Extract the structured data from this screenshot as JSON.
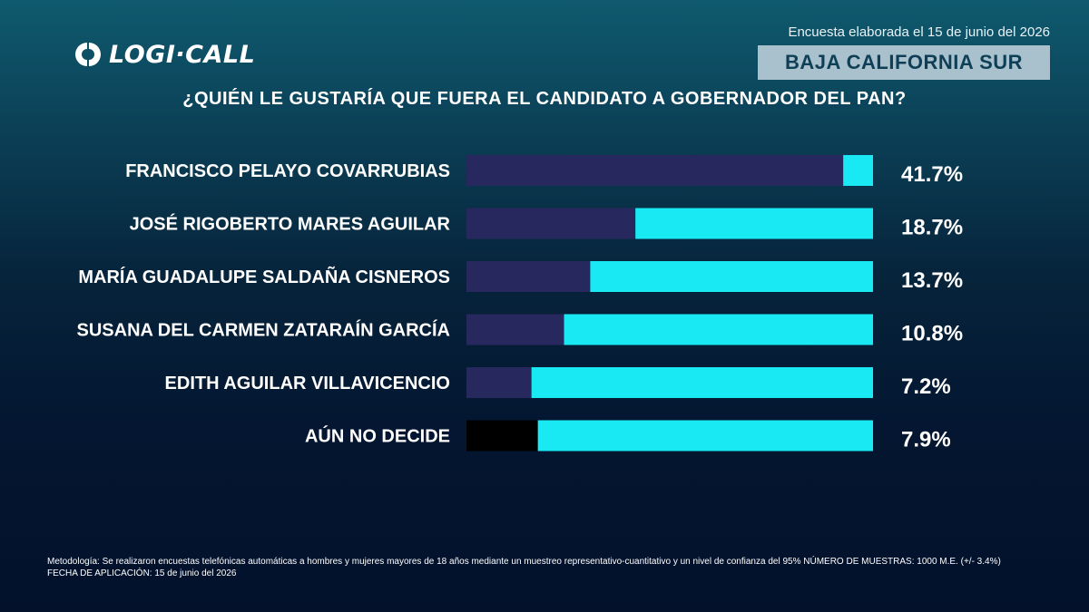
{
  "header": {
    "logo_text": "LOGI·CALL",
    "survey_date": "Encuesta elaborada el 15 de junio del 2026",
    "region": "BAJA CALIFORNIA SUR",
    "question": "¿QUIÉN LE GUSTARÍA QUE FUERA EL CANDIDATO A GOBERNADOR DEL PAN?"
  },
  "colors": {
    "bar_value": "#27285e",
    "bar_remainder": "#18e9f2",
    "undecided_value": "#000000",
    "badge_bg": "#a9c1cc",
    "badge_text": "#0f3f57"
  },
  "chart_data": {
    "type": "bar",
    "orientation": "horizontal",
    "title": "¿QUIÉN LE GUSTARÍA QUE FUERA EL CANDIDATO A GOBERNADOR DEL PAN?",
    "categories": [
      "FRANCISCO PELAYO COVARRUBIAS",
      "JOSÉ RIGOBERTO MARES AGUILAR",
      "MARÍA GUADALUPE SALDAÑA CISNEROS",
      "SUSANA DEL CARMEN ZATARAÍN GARCÍA",
      "EDITH AGUILAR VILLAVICENCIO",
      "AÚN NO DECIDE"
    ],
    "values": [
      41.7,
      18.7,
      13.7,
      10.8,
      7.2,
      7.9
    ],
    "value_labels": [
      "41.7%",
      "18.7%",
      "13.7%",
      "10.8%",
      "7.2%",
      "7.9%"
    ],
    "xlim": [
      0,
      45
    ],
    "xlabel": "",
    "ylabel": "",
    "grid": false,
    "legend": "none"
  },
  "footer": {
    "methodology": "Metodología: Se realizaron encuestas telefónicas automáticas a hombres y mujeres mayores de 18 años mediante un muestreo representativo-cuantitativo y un nivel de confianza del 95% NÚMERO DE MUESTRAS: 1000 M.E. (+/- 3.4%)",
    "application_date": "FECHA DE APLICACIÓN: 15 de junio del 2026"
  }
}
